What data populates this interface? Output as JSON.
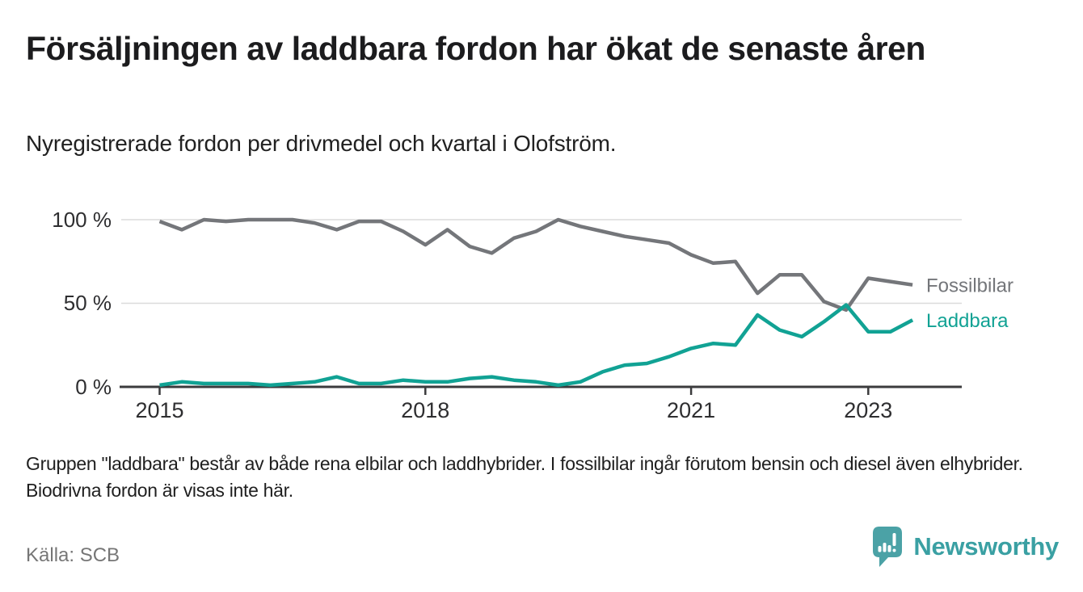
{
  "title": "Försäljningen av laddbara fordon har ökat de senaste åren",
  "subtitle": "Nyregistrerade fordon per drivmedel och kvartal i Olofström.",
  "note": "Gruppen \"laddbara\" består av både rena elbilar och laddhybrider. I fossilbilar ingår förutom bensin och diesel även elhybrider. Biodrivna fordon är visas inte här.",
  "source": "Källa: SCB",
  "brand": {
    "name": "Newsworthy",
    "icon": "bar-chart-pin-icon",
    "icon_color": "#4ba2a6",
    "text_color": "#3aa0a3"
  },
  "chart_data": {
    "type": "line",
    "unit": "%",
    "title": "Nyregistrerade fordon per drivmedel och kvartal i Olofström",
    "x_axis": {
      "tick_labels": [
        "2015",
        "2018",
        "2021",
        "2023"
      ],
      "start": "2015 Q1",
      "end": "2023 Q3",
      "interval": "quarter"
    },
    "y_axis": {
      "tick_labels": [
        "100 %",
        "50 %",
        "0 %"
      ],
      "range": [
        0,
        100
      ],
      "gridlines_at": [
        100,
        50
      ],
      "gridlines": true
    },
    "legend_position": "right-end-of-lines",
    "quarters": [
      "2015 Q1",
      "2015 Q2",
      "2015 Q3",
      "2015 Q4",
      "2016 Q1",
      "2016 Q2",
      "2016 Q3",
      "2016 Q4",
      "2017 Q1",
      "2017 Q2",
      "2017 Q3",
      "2017 Q4",
      "2018 Q1",
      "2018 Q2",
      "2018 Q3",
      "2018 Q4",
      "2019 Q1",
      "2019 Q2",
      "2019 Q3",
      "2019 Q4",
      "2020 Q1",
      "2020 Q2",
      "2020 Q3",
      "2020 Q4",
      "2021 Q1",
      "2021 Q2",
      "2021 Q3",
      "2021 Q4",
      "2022 Q1",
      "2022 Q2",
      "2022 Q3",
      "2022 Q4",
      "2023 Q1",
      "2023 Q2",
      "2023 Q3"
    ],
    "series": [
      {
        "name": "Fossilbilar",
        "color": "#74767a",
        "values": [
          99,
          94,
          100,
          99,
          100,
          100,
          100,
          98,
          94,
          99,
          99,
          93,
          85,
          94,
          84,
          80,
          89,
          93,
          100,
          96,
          93,
          90,
          88,
          86,
          79,
          74,
          75,
          56,
          67,
          67,
          51,
          46,
          65,
          63,
          61
        ]
      },
      {
        "name": "Laddbara",
        "color": "#11a294",
        "values": [
          1,
          3,
          2,
          2,
          2,
          1,
          2,
          3,
          6,
          2,
          2,
          4,
          3,
          3,
          5,
          6,
          4,
          3,
          1,
          3,
          9,
          13,
          14,
          18,
          23,
          26,
          25,
          43,
          34,
          30,
          39,
          49,
          33,
          33,
          40
        ]
      }
    ]
  }
}
